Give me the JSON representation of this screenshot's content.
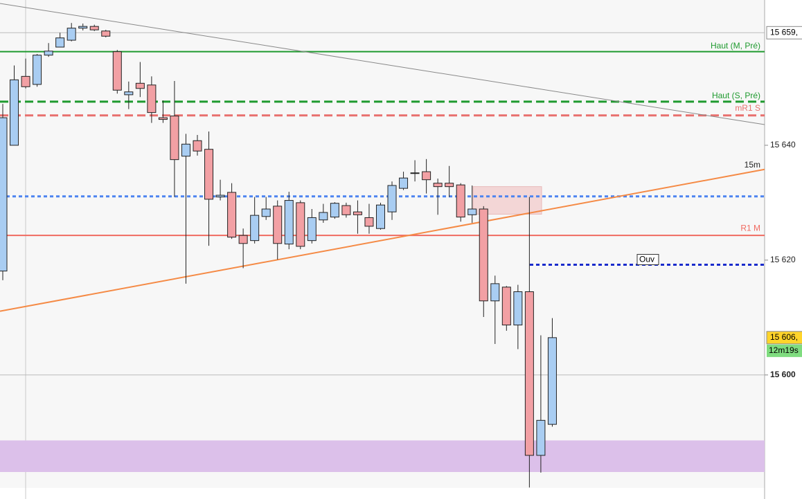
{
  "chart_data": {
    "type": "candlestick",
    "ylim": [
      15578.4,
      15665.3
    ],
    "yticks": [
      {
        "value": 15640,
        "label": "15 640"
      },
      {
        "value": 15620,
        "label": "15 620"
      },
      {
        "value": 15600,
        "label": "15 600"
      }
    ],
    "up_color": "#a9cdf2",
    "down_color": "#f2a0a4",
    "series": {
      "open": [
        15618.1,
        15640.0,
        15652.0,
        15650.6,
        15655.7,
        15657.1,
        15658.3,
        15660.4,
        15660.7,
        15659.9,
        15656.3,
        15648.8,
        15650.8,
        15650.5,
        15644.8,
        15645.1,
        15638.1,
        15640.8,
        15639.3,
        15631.0,
        15631.8,
        15624.3,
        15623.4,
        15627.6,
        15629.4,
        15622.8,
        15630.0,
        15623.4,
        15627.0,
        15627.5,
        15629.5,
        15628.4,
        15627.4,
        15625.5,
        15628.4,
        15632.5,
        15635.1,
        15635.4,
        15633.4,
        15633.4,
        15633.1,
        15627.9,
        15628.9,
        15612.9,
        15615.3,
        15608.7,
        15614.5,
        15586.0,
        15591.4
      ],
      "high": [
        15647.2,
        15653.9,
        15655.1,
        15655.9,
        15657.8,
        15659.6,
        15661.3,
        15661.2,
        15661.0,
        15660.1,
        15656.6,
        15651.1,
        15654.5,
        15652.0,
        15647.8,
        15651.2,
        15642.0,
        15641.8,
        15642.4,
        15634.0,
        15633.4,
        15625.5,
        15631.0,
        15631.0,
        15630.4,
        15631.9,
        15630.4,
        15628.9,
        15629.8,
        15630.1,
        15630.0,
        15630.4,
        15629.8,
        15630.0,
        15633.7,
        15635.4,
        15637.4,
        15637.6,
        15634.2,
        15636.4,
        15633.4,
        15633.0,
        15629.4,
        15617.3,
        15615.5,
        15615.7,
        15631.0,
        15606.9,
        15609.9
      ],
      "low": [
        15616.5,
        15640.0,
        15649.9,
        15650.2,
        15655.4,
        15657.1,
        15658.1,
        15660.0,
        15659.9,
        15658.8,
        15649.0,
        15646.3,
        15648.4,
        15643.9,
        15643.9,
        15631.0,
        15615.9,
        15638.2,
        15622.5,
        15630.4,
        15623.7,
        15618.6,
        15622.9,
        15627.0,
        15620.1,
        15621.9,
        15621.9,
        15622.9,
        15626.5,
        15627.2,
        15627.4,
        15624.6,
        15624.6,
        15625.3,
        15627.0,
        15632.2,
        15633.7,
        15631.6,
        15627.9,
        15631.0,
        15626.7,
        15626.5,
        15610.1,
        15605.4,
        15607.7,
        15604.5,
        15580.4,
        15583.0,
        15591.0
      ],
      "close": [
        15644.8,
        15651.4,
        15650.2,
        15655.7,
        15656.4,
        15658.7,
        15660.4,
        15660.7,
        15660.1,
        15659.0,
        15649.6,
        15649.3,
        15649.9,
        15645.7,
        15644.5,
        15637.5,
        15640.2,
        15639.0,
        15630.6,
        15631.3,
        15624.0,
        15622.9,
        15627.8,
        15628.9,
        15622.9,
        15630.4,
        15622.4,
        15627.4,
        15628.3,
        15629.9,
        15627.9,
        15627.9,
        15625.9,
        15629.6,
        15633.0,
        15634.3,
        15635.2,
        15634.0,
        15632.8,
        15632.8,
        15627.5,
        15628.9,
        15612.9,
        15615.9,
        15608.7,
        15614.5,
        15586.0,
        15592.1,
        15606.5
      ]
    },
    "levels": [
      {
        "name": "Haut (M, Pré)",
        "value": 15656.3,
        "color": "#1e9a2e",
        "style": "solid"
      },
      {
        "name": "Haut (S, Pré)",
        "value": 15647.6,
        "color": "#1e9a2e",
        "style": "dashed"
      },
      {
        "name": "mR1 S",
        "value": 15645.2,
        "color": "#e8706e",
        "style": "dashed"
      },
      {
        "value": 15631.1,
        "color": "#4d84f0",
        "style": "dotted"
      },
      {
        "name": "R1 M",
        "value": 15624.3,
        "color": "#f06a60",
        "style": "solid"
      },
      {
        "name": "Ouv",
        "value": 15619.2,
        "color": "#1a2ccc",
        "style": "dotted"
      },
      {
        "value": 15659.6,
        "color": "#bbbbbb",
        "style": "solid"
      },
      {
        "value": 15600,
        "color": "#bbbbbb",
        "style": "solid"
      }
    ],
    "trendlines": [
      {
        "start": 15664.7,
        "end": 15643.6,
        "color": "#888888"
      },
      {
        "name": "15m",
        "start": 15611.1,
        "end": 15635.8,
        "color": "#f58a45"
      }
    ],
    "zones": [
      {
        "top": 15588.6,
        "bottom": 15583.1,
        "color": "#dcc0ea"
      },
      {
        "top": 15632.8,
        "bottom": 15628.0,
        "color": "#f3d6d6"
      }
    ],
    "price_labels": [
      {
        "value": 15659.6,
        "label": "15 659,",
        "color": "#ffffff"
      },
      {
        "value": 15606.5,
        "label": "15 606,",
        "color": "#ffd42a"
      }
    ],
    "countdown": "12m19s"
  }
}
